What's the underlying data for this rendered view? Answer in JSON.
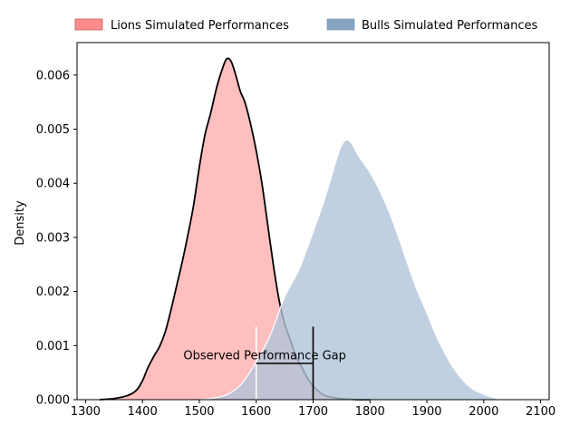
{
  "chart_data": {
    "type": "area",
    "title": "",
    "xlabel": "",
    "ylabel": "Density",
    "xlim": [
      1285,
      2115
    ],
    "ylim": [
      0,
      0.0066
    ],
    "x_ticks": [
      1300,
      1400,
      1500,
      1600,
      1700,
      1800,
      1900,
      2000,
      2100
    ],
    "y_ticks": [
      0.0,
      0.001,
      0.002,
      0.003,
      0.004,
      0.005,
      0.006
    ],
    "y_tick_labels": [
      "0.000",
      "0.001",
      "0.002",
      "0.003",
      "0.004",
      "0.005",
      "0.006"
    ],
    "grid": false,
    "legend": {
      "placement": "top",
      "columns": 2
    },
    "series": [
      {
        "name": "Lions Simulated Performances",
        "color": "#ff9c9c",
        "fill_alpha": 0.65,
        "outline_color": "#000000",
        "x": [
          1325,
          1350,
          1375,
          1390,
          1400,
          1410,
          1420,
          1430,
          1440,
          1450,
          1460,
          1470,
          1480,
          1490,
          1500,
          1510,
          1520,
          1530,
          1540,
          1548,
          1556,
          1564,
          1572,
          1580,
          1590,
          1600,
          1610,
          1620,
          1630,
          1640,
          1650,
          1660,
          1670,
          1680,
          1690,
          1700,
          1710,
          1720,
          1740,
          1760,
          1780,
          1800
        ],
        "values": [
          0.0,
          2e-05,
          8e-05,
          0.00018,
          0.00035,
          0.0006,
          0.0008,
          0.00098,
          0.00125,
          0.00165,
          0.0021,
          0.00255,
          0.00305,
          0.0036,
          0.0043,
          0.0049,
          0.0053,
          0.00575,
          0.0061,
          0.0063,
          0.00625,
          0.006,
          0.0057,
          0.0055,
          0.0051,
          0.0046,
          0.004,
          0.00325,
          0.0025,
          0.00185,
          0.0014,
          0.0011,
          0.0008,
          0.0006,
          0.0004,
          0.00025,
          0.00015,
          8e-05,
          3e-05,
          1e-05,
          0.0,
          0.0
        ]
      },
      {
        "name": "Bulls Simulated Performances",
        "color": "#b0c4da",
        "fill_alpha": 0.8,
        "outline_color": "#ffffff",
        "x": [
          1500,
          1525,
          1550,
          1575,
          1600,
          1625,
          1650,
          1675,
          1700,
          1720,
          1740,
          1750,
          1760,
          1770,
          1780,
          1800,
          1820,
          1840,
          1860,
          1880,
          1900,
          1920,
          1940,
          1960,
          1980,
          2000,
          2020,
          2035
        ],
        "values": [
          0.0,
          3e-05,
          0.0001,
          0.0003,
          0.0007,
          0.0012,
          0.0019,
          0.0024,
          0.0031,
          0.0037,
          0.0044,
          0.0047,
          0.0048,
          0.0047,
          0.0045,
          0.0042,
          0.0038,
          0.0033,
          0.0027,
          0.0021,
          0.0016,
          0.0011,
          0.0007,
          0.0004,
          0.0002,
          0.0001,
          3e-05,
          0.0
        ]
      }
    ],
    "annotations": [
      {
        "text": "Observed Performance Gap",
        "text_x": 1615,
        "text_y": 0.00075,
        "gap_from": 1600,
        "gap_to": 1700,
        "bar_y": 0.00067,
        "markers": [
          {
            "x": 1600,
            "y_top": 0.00135,
            "color": "#ffffff"
          },
          {
            "x": 1700,
            "y_top": 0.00135,
            "color": "#000000"
          }
        ]
      }
    ]
  }
}
